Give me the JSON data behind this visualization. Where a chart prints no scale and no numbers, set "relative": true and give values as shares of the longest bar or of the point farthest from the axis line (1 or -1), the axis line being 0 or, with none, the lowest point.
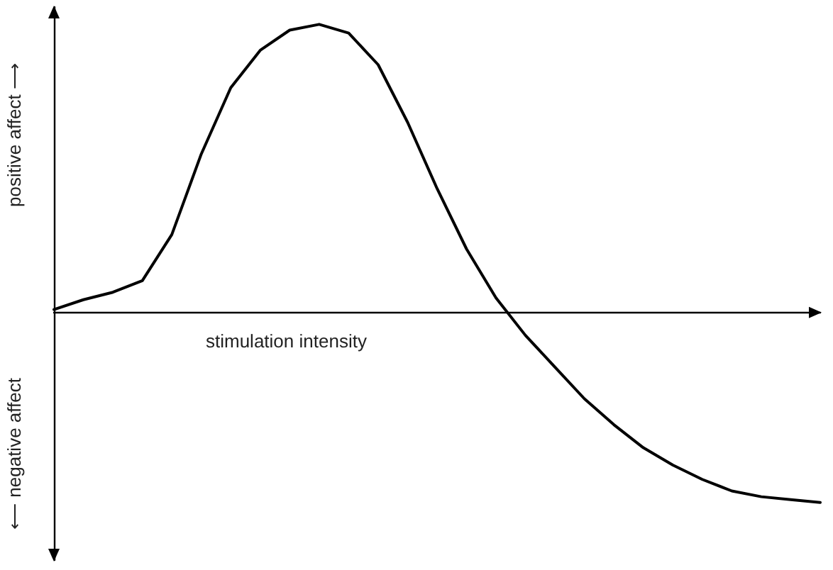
{
  "chart_data": {
    "type": "line",
    "relative": true,
    "xlabel": "stimulation intensity",
    "ylabel": "positive affect ⟶",
    "annotations": [
      "⟵ negative affect"
    ],
    "categories": [
      null,
      null,
      null,
      null,
      null,
      null,
      null,
      null,
      null,
      null,
      null,
      null,
      null,
      null,
      null,
      null,
      null,
      null,
      null,
      null,
      null,
      null,
      null,
      null,
      null,
      null,
      null
    ],
    "values": [
      0.01,
      0.044,
      0.07,
      0.11,
      0.27,
      0.55,
      0.78,
      0.91,
      0.98,
      1.0,
      0.97,
      0.86,
      0.66,
      0.43,
      0.22,
      0.05,
      -0.08,
      -0.19,
      -0.3,
      -0.39,
      -0.47,
      -0.53,
      -0.58,
      -0.62,
      -0.64,
      -0.65,
      -0.66
    ],
    "color": "#000000",
    "marker": "none",
    "line_style": "solid",
    "grid": false
  }
}
